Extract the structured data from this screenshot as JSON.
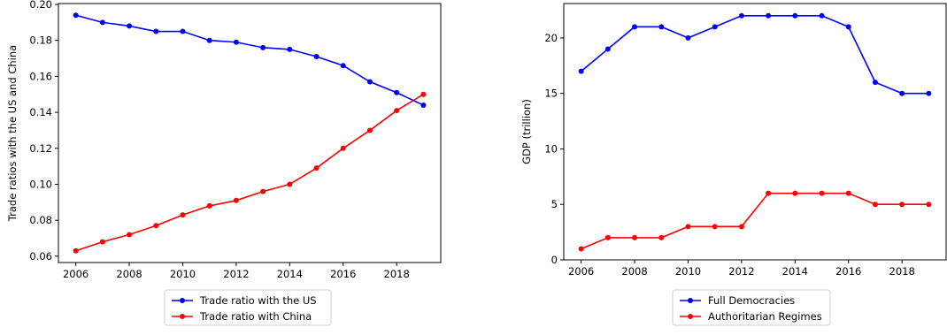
{
  "chart_data": [
    {
      "type": "line",
      "title": "",
      "xlabel": "",
      "ylabel": "Trade ratios with the US and China",
      "xlim": [
        2005.35,
        2019.65
      ],
      "ylim": [
        0.0565,
        0.2005
      ],
      "x_ticks": [
        2006,
        2008,
        2010,
        2012,
        2014,
        2016,
        2018
      ],
      "y_ticks": [
        0.06,
        0.08,
        0.1,
        0.12,
        0.14,
        0.16,
        0.18,
        0.2
      ],
      "y_tick_labels": [
        "0.06",
        "0.08",
        "0.10",
        "0.12",
        "0.14",
        "0.16",
        "0.18",
        "0.20"
      ],
      "x": [
        2006,
        2007,
        2008,
        2009,
        2010,
        2011,
        2012,
        2013,
        2014,
        2015,
        2016,
        2017,
        2018,
        2019
      ],
      "series": [
        {
          "name": "Trade ratio with the US",
          "color": "#0000ff",
          "values": [
            0.194,
            0.19,
            0.188,
            0.185,
            0.185,
            0.18,
            0.179,
            0.176,
            0.175,
            0.171,
            0.166,
            0.157,
            0.151,
            0.144
          ]
        },
        {
          "name": "Trade ratio with China",
          "color": "#ff0000",
          "values": [
            0.063,
            0.068,
            0.072,
            0.077,
            0.083,
            0.088,
            0.091,
            0.096,
            0.1,
            0.109,
            0.12,
            0.13,
            0.141,
            0.15
          ]
        }
      ],
      "grid": false,
      "legend": "below"
    },
    {
      "type": "line",
      "title": "",
      "xlabel": "",
      "ylabel": "GDP (trillion)",
      "xlim": [
        2005.35,
        2019.65
      ],
      "ylim": [
        0,
        23.1
      ],
      "x_ticks": [
        2006,
        2008,
        2010,
        2012,
        2014,
        2016,
        2018
      ],
      "y_ticks": [
        0,
        5,
        10,
        15,
        20
      ],
      "y_tick_labels": [
        "0",
        "5",
        "10",
        "15",
        "20"
      ],
      "x": [
        2006,
        2007,
        2008,
        2009,
        2010,
        2011,
        2012,
        2013,
        2014,
        2015,
        2016,
        2017,
        2018,
        2019
      ],
      "series": [
        {
          "name": "Full Democracies",
          "color": "#0000ff",
          "values": [
            17,
            19,
            21,
            21,
            20,
            21,
            22,
            22,
            22,
            22,
            21,
            16,
            15,
            15
          ]
        },
        {
          "name": "Authoritarian Regimes",
          "color": "#ff0000",
          "values": [
            1,
            2,
            2,
            2,
            3,
            3,
            3,
            6,
            6,
            6,
            6,
            5,
            5,
            5
          ]
        }
      ],
      "grid": false,
      "legend": "below"
    }
  ]
}
